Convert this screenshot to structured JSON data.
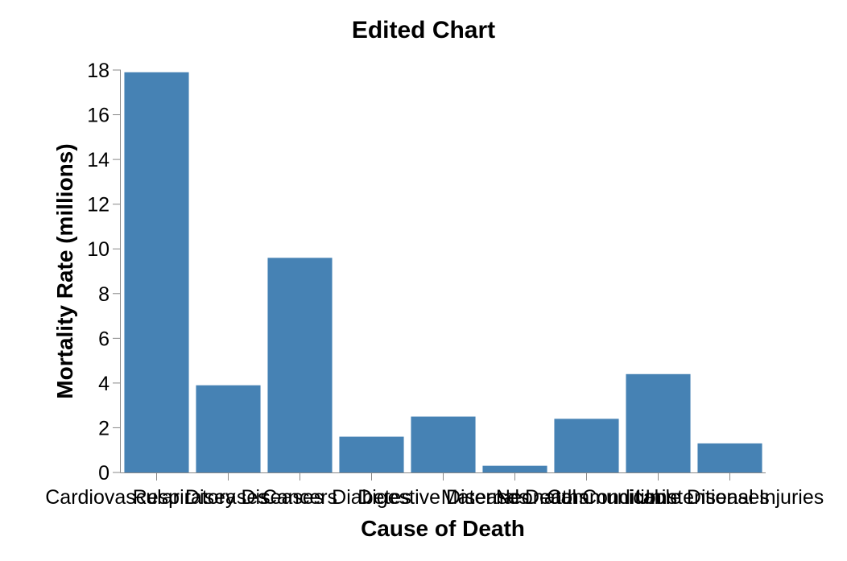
{
  "chart_data": {
    "type": "bar",
    "title": "Edited Chart",
    "xlabel": "Cause of Death",
    "ylabel": "Mortality Rate (millions)",
    "categories": [
      "Cardiovascular Diseases",
      "Respiratory Diseases",
      "Cancers",
      "Diabetes",
      "Digestive Diseases",
      "Maternal Deaths",
      "Neonatal Conditions",
      "Communicable Diseases",
      "Unintentional Injuries"
    ],
    "values": [
      17.9,
      3.9,
      9.6,
      1.6,
      2.5,
      0.3,
      2.4,
      4.4,
      1.3
    ],
    "ylim": [
      0,
      18
    ],
    "yticks": [
      "0",
      "2",
      "4",
      "6",
      "8",
      "10",
      "12",
      "14",
      "16",
      "18"
    ],
    "grid": false,
    "bar_color": "#4682b4",
    "axis_color": "#888888",
    "text_color": "#000000"
  }
}
